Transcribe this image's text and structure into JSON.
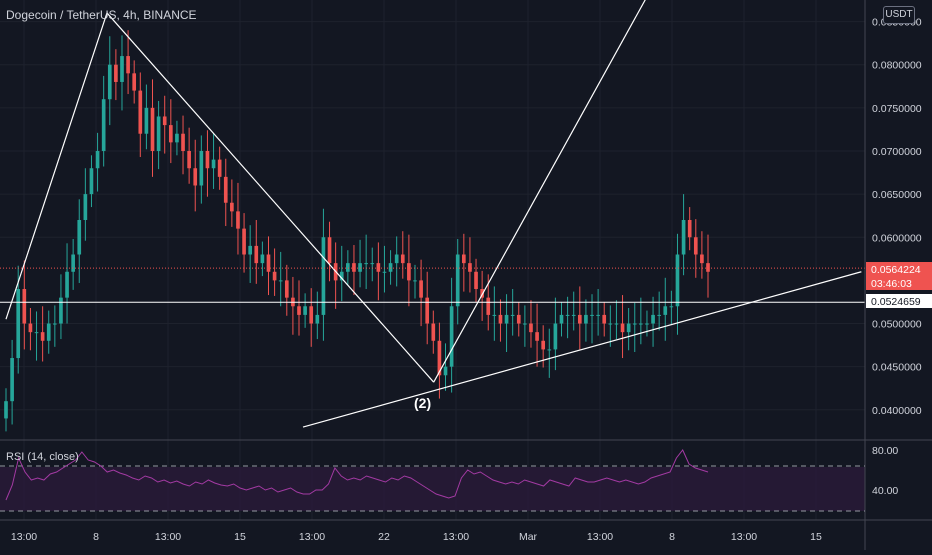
{
  "header": {
    "title": "Dogecoin / TetherUS, 4h, BINANCE",
    "currency": "USDT"
  },
  "rsi": {
    "label": "RSI (14, close)",
    "upper": 70,
    "lower": 30,
    "ticks": [
      "80.00",
      "40.00"
    ]
  },
  "annotation": {
    "wave_label": "(2)"
  },
  "price_labels": {
    "current_price": "0.0564224",
    "countdown": "03:46:03",
    "support_price": "0.0524659"
  },
  "colors": {
    "background": "#131722",
    "up": "#26a69a",
    "down": "#ef5350",
    "rsi_line": "#a33aa3",
    "rsi_band": "#2a1a3a",
    "grid": "#363a45"
  },
  "chart_data": {
    "type": "candlestick",
    "title": "Dogecoin / TetherUS, 4h, BINANCE",
    "y_ticks": [
      "0.0850000",
      "0.0800000",
      "0.0750000",
      "0.0700000",
      "0.0650000",
      "0.0600000",
      "0.0500000",
      "0.0450000",
      "0.0400000"
    ],
    "x_ticks": [
      "13:00",
      "8",
      "13:00",
      "15",
      "13:00",
      "22",
      "13:00",
      "Mar",
      "13:00",
      "8",
      "13:00",
      "15"
    ],
    "ylim": [
      0.0365,
      0.0875
    ],
    "trend_lines": [
      {
        "from": [
          0,
          0.0505
        ],
        "to": [
          17,
          0.086
        ]
      },
      {
        "from": [
          17,
          0.086
        ],
        "to": [
          72,
          0.0432
        ]
      },
      {
        "from": [
          72,
          0.0432
        ],
        "to": [
          108,
          0.088
        ]
      },
      {
        "from": [
          50,
          0.038
        ],
        "to": [
          144,
          0.056
        ]
      }
    ],
    "support_level": 0.0524659,
    "current_price": 0.0564224,
    "candles_close_path": [
      0.041,
      0.046,
      0.054,
      0.05,
      0.049,
      0.049,
      0.048,
      0.05,
      0.05,
      0.053,
      0.056,
      0.058,
      0.062,
      0.065,
      0.068,
      0.07,
      0.076,
      0.08,
      0.078,
      0.081,
      0.079,
      0.077,
      0.072,
      0.075,
      0.07,
      0.074,
      0.073,
      0.071,
      0.072,
      0.07,
      0.068,
      0.066,
      0.07,
      0.068,
      0.069,
      0.067,
      0.064,
      0.063,
      0.061,
      0.058,
      0.059,
      0.057,
      0.058,
      0.056,
      0.055,
      0.055,
      0.053,
      0.052,
      0.051,
      0.052,
      0.05,
      0.051,
      0.06,
      0.057,
      0.055,
      0.056,
      0.057,
      0.056,
      0.057,
      0.057,
      0.057,
      0.056,
      0.056,
      0.057,
      0.058,
      0.057,
      0.055,
      0.055,
      0.053,
      0.05,
      0.048,
      0.044,
      0.045,
      0.052,
      0.058,
      0.057,
      0.056,
      0.054,
      0.053,
      0.051,
      0.051,
      0.05,
      0.051,
      0.051,
      0.05,
      0.05,
      0.049,
      0.048,
      0.047,
      0.047,
      0.05,
      0.051,
      0.051,
      0.051,
      0.05,
      0.051,
      0.051,
      0.051,
      0.05,
      0.05,
      0.05,
      0.049,
      0.05,
      0.05,
      0.05,
      0.05,
      0.051,
      0.051,
      0.052,
      0.052,
      0.058,
      0.062,
      0.06,
      0.058,
      0.057,
      0.056
    ],
    "rsi_series": [
      30,
      45,
      72,
      58,
      50,
      52,
      50,
      56,
      58,
      62,
      66,
      70,
      78,
      70,
      68,
      64,
      58,
      60,
      57,
      55,
      52,
      50,
      54,
      52,
      48,
      50,
      47,
      49,
      46,
      44,
      48,
      46,
      50,
      47,
      45,
      44,
      46,
      42,
      40,
      42,
      44,
      40,
      42,
      38,
      40,
      42,
      38,
      36,
      36,
      40,
      40,
      46,
      62,
      54,
      50,
      52,
      50,
      54,
      52,
      50,
      48,
      52,
      50,
      54,
      52,
      48,
      44,
      40,
      36,
      34,
      32,
      34,
      52,
      60,
      56,
      58,
      54,
      50,
      48,
      46,
      48,
      46,
      50,
      48,
      46,
      44,
      50,
      48,
      46,
      44,
      52,
      50,
      48,
      48,
      50,
      52,
      50,
      48,
      50,
      48,
      46,
      48,
      52,
      54,
      56,
      58,
      72,
      80,
      66,
      62,
      60,
      58
    ]
  }
}
